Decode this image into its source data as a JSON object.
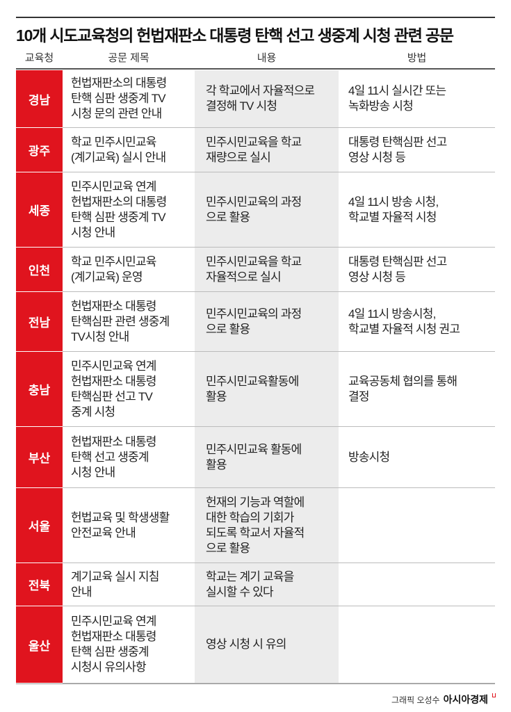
{
  "title": "10개 시도교육청의 헌법재판소 대통령 탄핵 선고 생중계 시청 관련 공문",
  "headers": [
    "교육청",
    "공문 제목",
    "내용",
    "방법"
  ],
  "accent": "#e0141e",
  "rows": [
    {
      "region": "경남",
      "title": "헌법재판소의 대통령\n탄핵 심판 생중계 TV\n시청 문의 관련 안내",
      "content": "각 학교에서 자율적으로\n결정해 TV 시청",
      "method": "4일 11시 실시간 또는\n녹화방송 시청"
    },
    {
      "region": "광주",
      "title": "학교 민주시민교육\n(계기교육) 실시 안내",
      "content": "민주시민교육을 학교\n재량으로 실시",
      "method": "대통령 탄핵심판 선고\n영상 시청 등"
    },
    {
      "region": "세종",
      "title": "민주시민교육 연계\n헌법재판소의 대통령\n탄핵 심판 생중계 TV\n시청 안내",
      "content": "민주시민교육의 과정\n으로 활용",
      "method": "4일 11시 방송 시청,\n학교별 자율적 시청"
    },
    {
      "region": "인천",
      "title": "학교 민주시민교육\n(계기교육) 운영",
      "content": "민주시민교육을 학교\n자율적으로 실시",
      "method": "대통령 탄핵심판 선고\n영상 시청 등"
    },
    {
      "region": "전남",
      "title": "헌법재판소 대통령\n탄핵심판 관련 생중계\nTV시청 안내",
      "content": "민주시민교육의 과정\n으로 활용",
      "method": "4일 11시 방송시청,\n학교별 자율적 시청 권고"
    },
    {
      "region": "충남",
      "title": "민주시민교육 연계\n헌법재판소 대통령\n탄핵심판 선고 TV\n중계 시청",
      "content": "민주시민교육활동에\n활용",
      "method": "교육공동체 협의를 통해\n결정"
    },
    {
      "region": "부산",
      "title": "헌법재판소 대통령\n탄핵 선고 생중계\n시청 안내",
      "content": "민주시민교육 활동에\n활용",
      "method": "방송시청"
    },
    {
      "region": "서울",
      "title": "헌법교육 및 학생생활\n안전교육 안내",
      "content": "헌재의 기능과 역할에\n대한 학습의 기회가\n되도록 학교서 자율적\n으로 활용",
      "method": ""
    },
    {
      "region": "전북",
      "title": "계기교육 실시 지침\n안내",
      "content": "학교는 계기 교육을\n실시할 수 있다",
      "method": ""
    },
    {
      "region": "울산",
      "title": "민주시민교육 연계\n헌법재판소 대통령\n탄핵 심판 생중계\n시청시 유의사항",
      "content": "영상 시청 시 유의",
      "method": ""
    }
  ],
  "credit": {
    "graphic": "그래픽 오성수",
    "brand": "아시아경제"
  }
}
